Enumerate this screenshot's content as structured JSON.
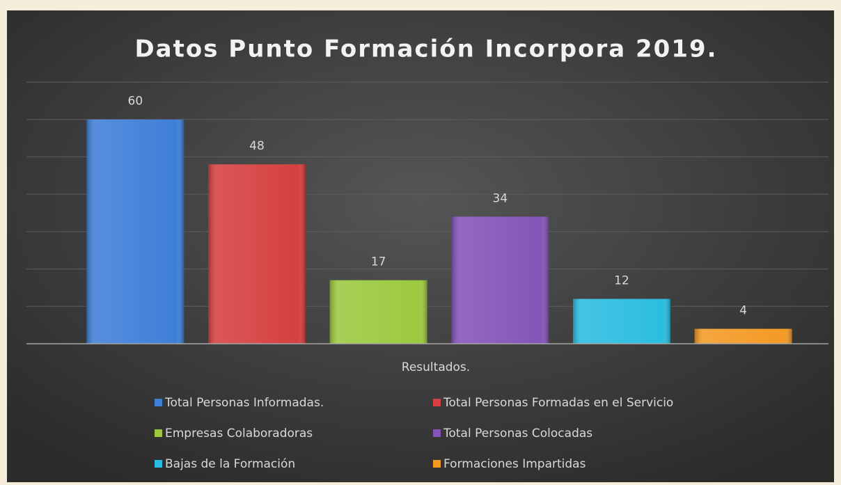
{
  "chart_data": {
    "type": "bar",
    "title": "Datos Punto Formación Incorpora 2019.",
    "categories": [
      "Resultados."
    ],
    "series": [
      {
        "name": "Total Personas Informadas.",
        "color": "#3f7fd8",
        "values": [
          60
        ]
      },
      {
        "name": "Total Personas Formadas en el Servicio",
        "color": "#d64040",
        "values": [
          48
        ]
      },
      {
        "name": "Empresas Colaboradoras",
        "color": "#9cc93f",
        "values": [
          17
        ]
      },
      {
        "name": "Total Personas Colocadas",
        "color": "#8454b8",
        "values": [
          34
        ]
      },
      {
        "name": "Bajas de la Formación",
        "color": "#2bbde0",
        "values": [
          12
        ]
      },
      {
        "name": "Formaciones Impartidas",
        "color": "#f39a25",
        "values": [
          4
        ]
      }
    ],
    "ylim": [
      0,
      70
    ],
    "yticks": [
      0,
      10,
      20,
      30,
      40,
      50,
      60,
      70
    ],
    "grid": true,
    "legend": "bottom"
  }
}
